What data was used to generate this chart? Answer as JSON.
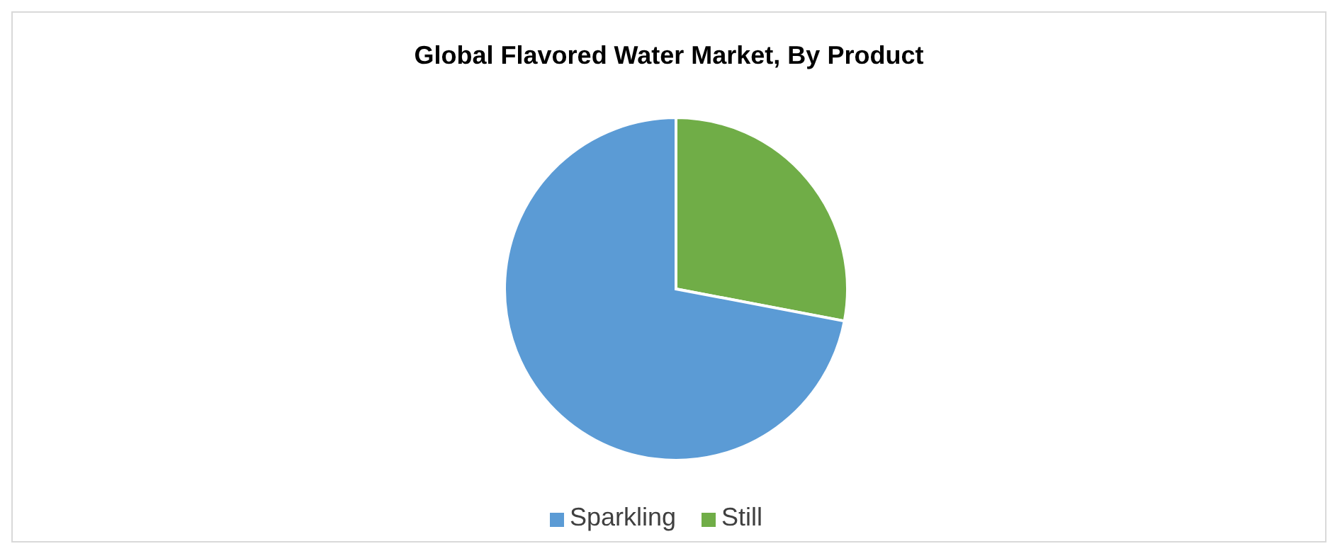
{
  "chart_data": {
    "type": "pie",
    "title": "Global Flavored Water Market, By Product",
    "categories": [
      "Still",
      "Sparkling"
    ],
    "values": [
      28,
      72
    ],
    "colors": [
      "#70ad47",
      "#5b9bd5"
    ],
    "legend": "bottom"
  }
}
